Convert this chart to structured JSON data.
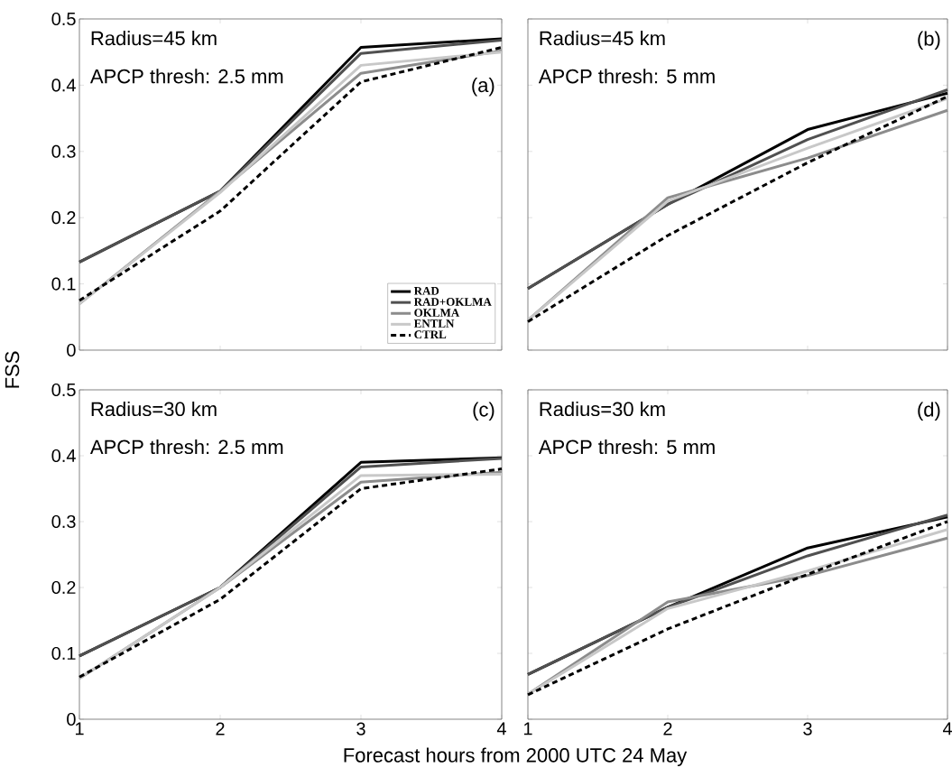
{
  "chart_data": [
    {
      "type": "line",
      "x": [
        1,
        2,
        3,
        4
      ],
      "xlim": [
        1,
        4
      ],
      "ylim": [
        0,
        0.5
      ],
      "xticks": [
        1,
        2,
        3,
        4
      ],
      "yticks": [
        0,
        0.1,
        0.2,
        0.3,
        0.4,
        0.5
      ],
      "tick_labels": "y",
      "ylabel": "FSS",
      "legend": "bottom right",
      "annotations": [
        "Radius=45 km",
        "APCP thresh: 2.5 mm",
        "(a)"
      ],
      "series": [
        {
          "name": "RAD",
          "color": "#000000",
          "values": [
            0.133,
            0.24,
            0.457,
            0.47
          ]
        },
        {
          "name": "RAD+OKLMA",
          "color": "#505050",
          "values": [
            0.133,
            0.24,
            0.448,
            0.468
          ]
        },
        {
          "name": "OKLMA",
          "color": "#8c8c8c",
          "values": [
            0.07,
            0.24,
            0.418,
            0.452
          ]
        },
        {
          "name": "ENTLN",
          "color": "#c8c8c8",
          "values": [
            0.07,
            0.238,
            0.43,
            0.45
          ]
        },
        {
          "name": "CTRL",
          "color": "#000000",
          "line_style": "dashed",
          "values": [
            0.075,
            0.21,
            0.405,
            0.457
          ]
        }
      ]
    },
    {
      "type": "line",
      "x": [
        1,
        2,
        3,
        4
      ],
      "xlim": [
        1,
        4
      ],
      "ylim": [
        0,
        0.5
      ],
      "xticks": [
        1,
        2,
        3,
        4
      ],
      "yticks": [
        0,
        0.1,
        0.2,
        0.3,
        0.4,
        0.5
      ],
      "tick_labels": false,
      "annotations": [
        "Radius=45 km",
        "APCP thresh: 5 mm",
        "(b)"
      ],
      "series": [
        {
          "color": "#000000",
          "values": [
            0.093,
            0.22,
            0.333,
            0.388
          ]
        },
        {
          "color": "#505050",
          "values": [
            0.093,
            0.22,
            0.318,
            0.393
          ]
        },
        {
          "color": "#8c8c8c",
          "values": [
            0.045,
            0.23,
            0.29,
            0.362
          ]
        },
        {
          "color": "#c8c8c8",
          "values": [
            0.045,
            0.225,
            0.305,
            0.38
          ]
        },
        {
          "color": "#000000",
          "line_style": "dashed",
          "values": [
            0.043,
            0.173,
            0.283,
            0.383
          ]
        }
      ]
    },
    {
      "type": "line",
      "x": [
        1,
        2,
        3,
        4
      ],
      "xlim": [
        1,
        4
      ],
      "ylim": [
        0,
        0.5
      ],
      "xticks": [
        1,
        2,
        3,
        4
      ],
      "yticks": [
        0,
        0.1,
        0.2,
        0.3,
        0.4,
        0.5
      ],
      "xlabel": "Forecast hours from 2000 UTC 24 May",
      "annotations": [
        "Radius=30 km",
        "APCP thresh: 2.5 mm",
        "(c)"
      ],
      "series": [
        {
          "color": "#000000",
          "values": [
            0.096,
            0.2,
            0.39,
            0.397
          ]
        },
        {
          "color": "#505050",
          "values": [
            0.096,
            0.2,
            0.383,
            0.396
          ]
        },
        {
          "color": "#8c8c8c",
          "values": [
            0.062,
            0.2,
            0.36,
            0.375
          ]
        },
        {
          "color": "#c8c8c8",
          "values": [
            0.062,
            0.2,
            0.37,
            0.372
          ]
        },
        {
          "color": "#000000",
          "line_style": "dashed",
          "values": [
            0.064,
            0.182,
            0.35,
            0.38
          ]
        }
      ]
    },
    {
      "type": "line",
      "x": [
        1,
        2,
        3,
        4
      ],
      "xlim": [
        1,
        4
      ],
      "ylim": [
        0,
        0.5
      ],
      "xticks": [
        1,
        2,
        3,
        4
      ],
      "yticks": [
        0,
        0.1,
        0.2,
        0.3,
        0.4,
        0.5
      ],
      "tick_labels": "x",
      "annotations": [
        "Radius=30 km",
        "APCP thresh: 5 mm",
        "(d)"
      ],
      "series": [
        {
          "color": "#000000",
          "values": [
            0.068,
            0.17,
            0.26,
            0.307
          ]
        },
        {
          "color": "#505050",
          "values": [
            0.068,
            0.17,
            0.248,
            0.31
          ]
        },
        {
          "color": "#8c8c8c",
          "values": [
            0.038,
            0.178,
            0.218,
            0.275
          ]
        },
        {
          "color": "#c8c8c8",
          "values": [
            0.038,
            0.168,
            0.225,
            0.288
          ]
        },
        {
          "color": "#000000",
          "line_style": "dashed",
          "values": [
            0.037,
            0.137,
            0.22,
            0.3
          ]
        }
      ]
    }
  ]
}
